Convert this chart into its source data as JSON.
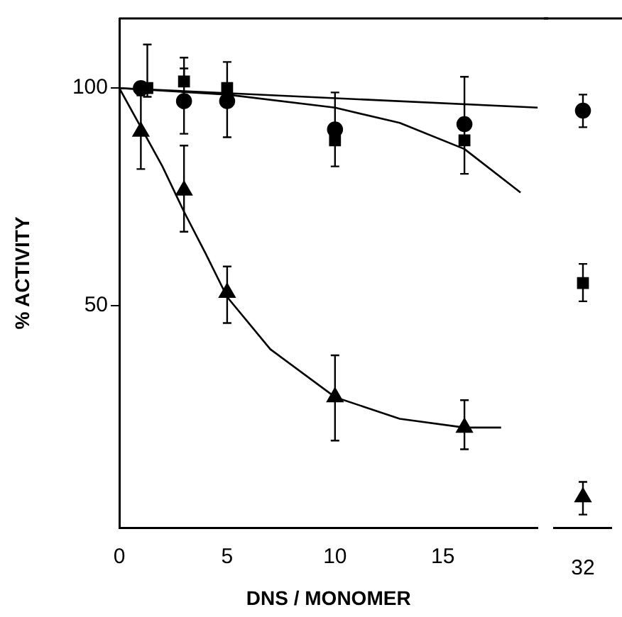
{
  "chart_data": [
    {
      "type": "scatter",
      "xlabel": "DNS / MONOMER",
      "ylabel": "% ACTIVITY",
      "xlim": [
        0,
        19.4
      ],
      "ylim": [
        -1,
        116
      ],
      "xticks": [
        0,
        5,
        10,
        15
      ],
      "yticks": [
        50,
        100
      ],
      "grid": false,
      "legend": false,
      "series": [
        {
          "color": "#000000",
          "marker": "circle",
          "x": [
            1,
            3,
            5,
            10,
            16
          ],
          "values": [
            100,
            97,
            97,
            90.5,
            91.7
          ],
          "errors": [
            null,
            [
              89.5,
              104.5
            ],
            null,
            null,
            null
          ]
        },
        {
          "color": "#000000",
          "marker": "square",
          "x": [
            1.3,
            3,
            5,
            10,
            16
          ],
          "values": [
            100,
            101.5,
            100,
            88,
            88
          ],
          "errors": [
            [
              98,
              110
            ],
            [
              101.5,
              107
            ],
            [
              88.7,
              106
            ],
            [
              82,
              99
            ],
            [
              80.3,
              102.6
            ]
          ]
        },
        {
          "color": "#000000",
          "marker": "triangle",
          "x": [
            1,
            3,
            5,
            10,
            16
          ],
          "values": [
            90,
            76.5,
            53,
            29,
            22
          ],
          "errors": [
            [
              81.4,
              98.3
            ],
            [
              67,
              86.8
            ],
            [
              46,
              59
            ],
            [
              19,
              38.6
            ],
            [
              17,
              28.3
            ]
          ]
        },
        {
          "type": "line",
          "color": "#000000",
          "marker": "none",
          "x": [
            0,
            19.4
          ],
          "values": [
            100,
            95.5
          ]
        },
        {
          "type": "line",
          "color": "#000000",
          "marker": "none",
          "x": [
            0,
            5,
            10,
            13,
            16,
            18.6
          ],
          "values": [
            100,
            98.5,
            95.5,
            92,
            86,
            76
          ]
        },
        {
          "type": "line",
          "color": "#000000",
          "marker": "none",
          "x": [
            0,
            1,
            2,
            3,
            4,
            5,
            7,
            10,
            13,
            16,
            17.7
          ],
          "values": [
            100,
            91,
            82,
            71.6,
            62,
            52,
            40,
            29,
            24,
            22,
            22
          ]
        }
      ]
    },
    {
      "type": "scatter",
      "categories": [
        "32"
      ],
      "ylim": [
        -1,
        116
      ],
      "tick_labels": "x",
      "grid": false,
      "legend": false,
      "series": [
        {
          "color": "#000000",
          "marker": "circle",
          "values": [
            94.8
          ],
          "errors": [
            [
              91,
              98.5
            ]
          ]
        },
        {
          "color": "#000000",
          "marker": "square",
          "values": [
            55.2
          ],
          "errors": [
            [
              51,
              59.6
            ]
          ]
        },
        {
          "color": "#000000",
          "marker": "triangle",
          "values": [
            6
          ],
          "errors": [
            [
              2,
              9.5
            ]
          ]
        }
      ]
    }
  ]
}
